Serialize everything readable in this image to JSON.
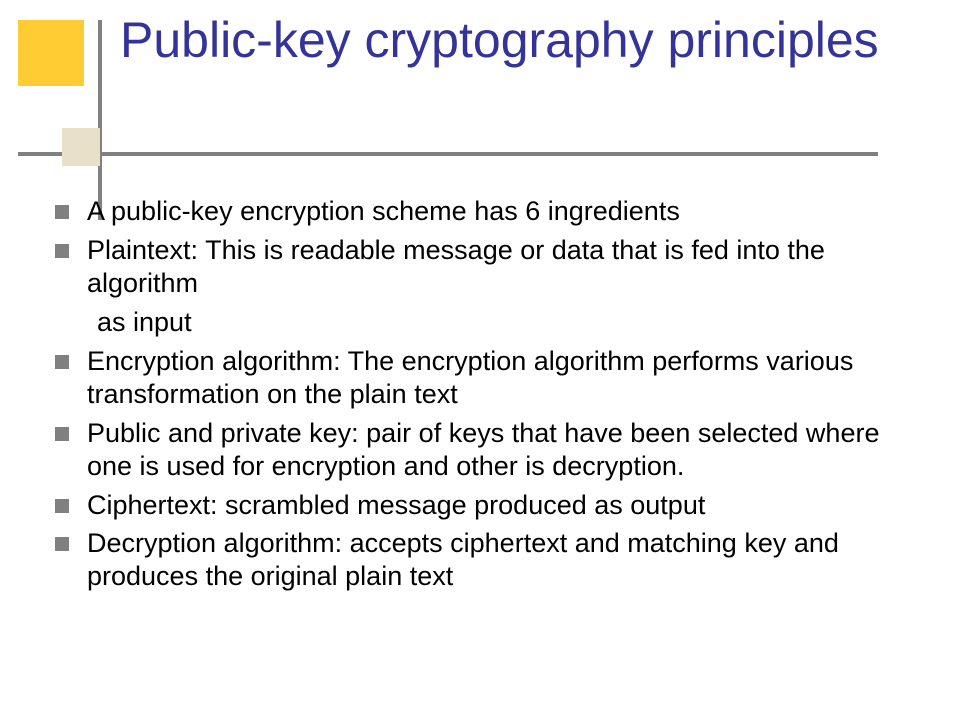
{
  "slide": {
    "title": "Public-key cryptography principles",
    "title_color": "#333399",
    "title_fontsize": 50,
    "body_fontsize": 27,
    "body_color": "#000000",
    "bullet_color": "#808080",
    "accent_square_color": "#ffcc33",
    "accent_square2_color": "#e8e0c8",
    "line_color": "#808080",
    "background": "#ffffff",
    "bullets": [
      {
        "text": "A public-key encryption scheme has 6 ingredients",
        "continuation": null
      },
      {
        "text": "Plaintext: This is readable message or data that is fed into the algorithm",
        "continuation": " as input"
      },
      {
        "text": "Encryption algorithm: The encryption algorithm performs various transformation on the plain text",
        "continuation": null
      },
      {
        "text": "Public and private key: pair of keys that have been selected where one is used for encryption and other is decryption.",
        "continuation": null
      },
      {
        "text": "Ciphertext: scrambled message produced as output",
        "continuation": null
      },
      {
        "text": "Decryption algorithm: accepts ciphertext and matching key and produces the original plain text",
        "continuation": null
      }
    ]
  }
}
